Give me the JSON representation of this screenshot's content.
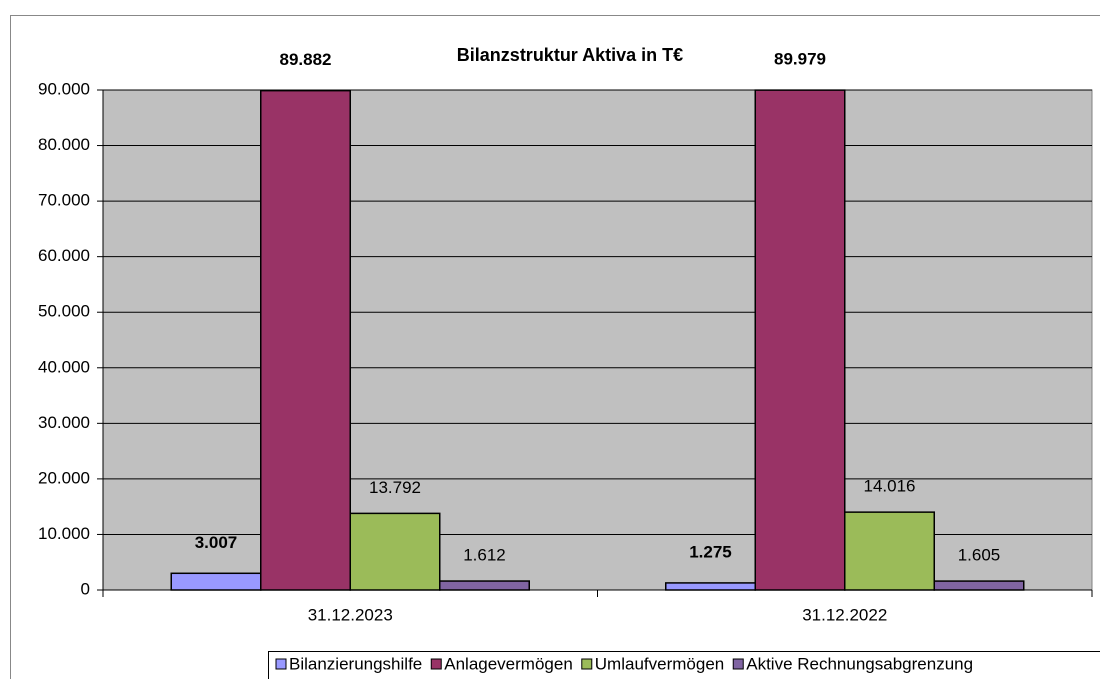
{
  "chart_data": {
    "type": "bar",
    "title": "Bilanzstruktur Aktiva in T€",
    "categories": [
      "31.12.2023",
      "31.12.2022"
    ],
    "series": [
      {
        "name": "Bilanzierungshilfe",
        "color": "#9999ff",
        "values": [
          3007,
          1275
        ],
        "value_labels": [
          "3.007",
          "1.275"
        ],
        "bold": true
      },
      {
        "name": "Anlagevermögen",
        "color": "#993366",
        "values": [
          89882,
          89979
        ],
        "value_labels": [
          "89.882",
          "89.979"
        ],
        "bold": true
      },
      {
        "name": "Umlaufvermögen",
        "color": "#9bbb59",
        "values": [
          13792,
          14016
        ],
        "value_labels": [
          "13.792",
          "14.016"
        ],
        "bold": false
      },
      {
        "name": "Aktive Rechnungsabgrenzung",
        "color": "#8064a2",
        "values": [
          1612,
          1605
        ],
        "value_labels": [
          "1.612",
          "1.605"
        ],
        "bold": false
      }
    ],
    "ylim": [
      0,
      90000
    ],
    "yticks": [
      0,
      {
        "value": 10000,
        "label": "10.000"
      },
      {
        "value": 20000,
        "label": "20.000"
      },
      {
        "value": 30000,
        "label": "30.000"
      },
      {
        "value": 40000,
        "label": "40.000"
      },
      {
        "value": 50000,
        "label": "50.000"
      },
      {
        "value": 60000,
        "label": "60.000"
      },
      {
        "value": 70000,
        "label": "70.000"
      },
      {
        "value": 80000,
        "label": "80.000"
      },
      {
        "value": 90000,
        "label": "90.000"
      }
    ],
    "grid": true,
    "legend": "bottom-right"
  }
}
